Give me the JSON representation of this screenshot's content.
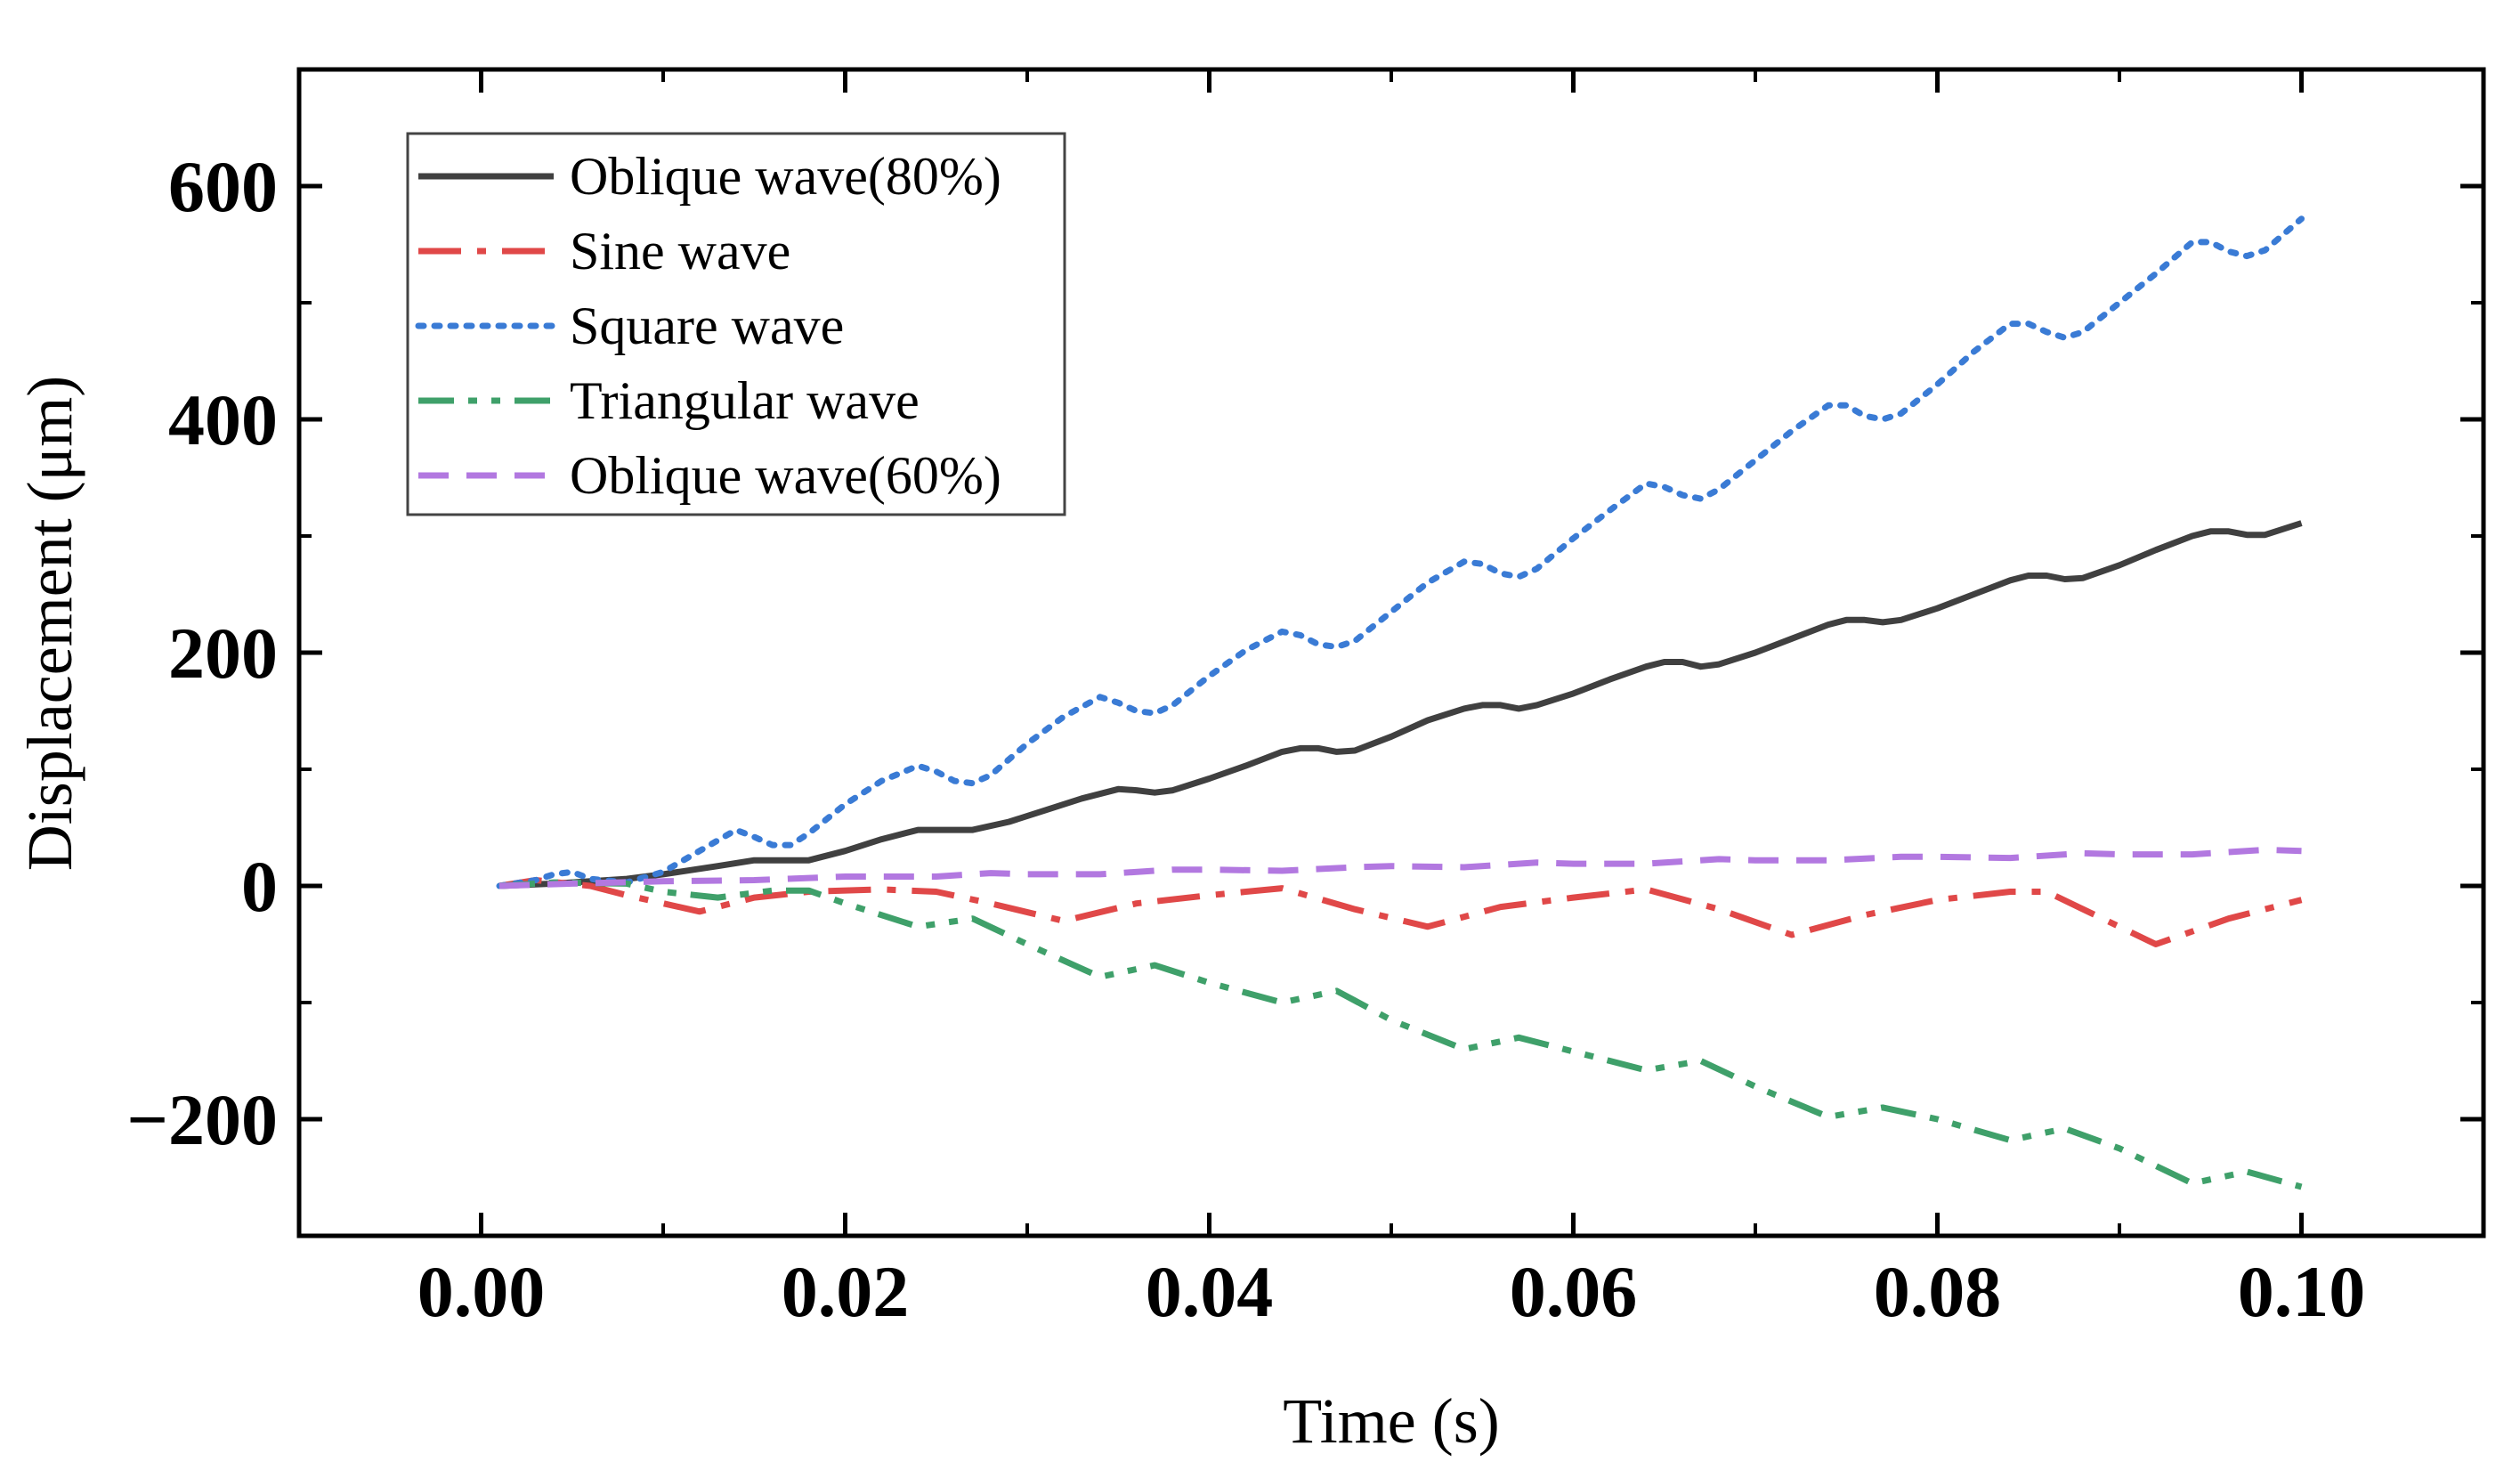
{
  "chart_data": {
    "type": "line",
    "title": "",
    "xlabel": "Time (s)",
    "ylabel": "Displacement (μm)",
    "xlim": [
      -0.01,
      0.11
    ],
    "ylim": [
      -300,
      700
    ],
    "xticks": [
      {
        "value": 0.0,
        "label": "0.00"
      },
      {
        "value": 0.02,
        "label": "0.02"
      },
      {
        "value": 0.04,
        "label": "0.04"
      },
      {
        "value": 0.06,
        "label": "0.06"
      },
      {
        "value": 0.08,
        "label": "0.08"
      },
      {
        "value": 0.1,
        "label": "0.10"
      }
    ],
    "yticks": [
      {
        "value": -200,
        "label": "−200"
      },
      {
        "value": 0,
        "label": "0"
      },
      {
        "value": 200,
        "label": "200"
      },
      {
        "value": 400,
        "label": "400"
      },
      {
        "value": 600,
        "label": "600"
      }
    ],
    "legend_position": "top-left",
    "series": [
      {
        "name": "Oblique wave(80%)",
        "color": "#404040",
        "dash": "solid",
        "x": [
          0.001,
          0.004,
          0.006,
          0.008,
          0.01,
          0.013,
          0.015,
          0.017,
          0.018,
          0.02,
          0.022,
          0.024,
          0.026,
          0.027,
          0.029,
          0.031,
          0.033,
          0.035,
          0.036,
          0.037,
          0.038,
          0.04,
          0.042,
          0.044,
          0.045,
          0.046,
          0.047,
          0.048,
          0.05,
          0.052,
          0.054,
          0.055,
          0.056,
          0.057,
          0.058,
          0.06,
          0.062,
          0.064,
          0.065,
          0.066,
          0.067,
          0.068,
          0.07,
          0.072,
          0.074,
          0.075,
          0.076,
          0.077,
          0.078,
          0.08,
          0.082,
          0.084,
          0.085,
          0.086,
          0.087,
          0.088,
          0.09,
          0.092,
          0.094,
          0.095,
          0.096,
          0.097,
          0.098,
          0.1
        ],
        "y": [
          0,
          2,
          4,
          6,
          10,
          17,
          22,
          22,
          22,
          30,
          40,
          48,
          48,
          48,
          55,
          65,
          75,
          83,
          82,
          80,
          82,
          92,
          103,
          115,
          118,
          118,
          115,
          116,
          128,
          142,
          152,
          155,
          155,
          152,
          155,
          165,
          177,
          188,
          192,
          192,
          188,
          190,
          200,
          212,
          224,
          228,
          228,
          226,
          228,
          238,
          250,
          262,
          266,
          266,
          263,
          264,
          275,
          288,
          300,
          304,
          304,
          301,
          301,
          311
        ]
      },
      {
        "name": "Sine wave",
        "color": "#E04848",
        "dash": "dashdot",
        "x": [
          0.001,
          0.003,
          0.006,
          0.008,
          0.012,
          0.015,
          0.018,
          0.022,
          0.025,
          0.028,
          0.032,
          0.036,
          0.04,
          0.044,
          0.048,
          0.052,
          0.056,
          0.06,
          0.064,
          0.068,
          0.072,
          0.076,
          0.08,
          0.084,
          0.086,
          0.088,
          0.092,
          0.096,
          0.1
        ],
        "y": [
          0,
          5,
          0,
          -8,
          -22,
          -10,
          -5,
          -3,
          -5,
          -15,
          -30,
          -15,
          -8,
          -2,
          -20,
          -35,
          -18,
          -10,
          -3,
          -20,
          -42,
          -25,
          -12,
          -5,
          -5,
          -20,
          -50,
          -28,
          -12
        ]
      },
      {
        "name": "Square wave",
        "color": "#3A7BD5",
        "dash": "dotted",
        "x": [
          0.001,
          0.003,
          0.004,
          0.005,
          0.006,
          0.008,
          0.01,
          0.012,
          0.014,
          0.015,
          0.016,
          0.017,
          0.018,
          0.02,
          0.022,
          0.024,
          0.025,
          0.026,
          0.027,
          0.028,
          0.03,
          0.032,
          0.034,
          0.035,
          0.036,
          0.037,
          0.038,
          0.04,
          0.042,
          0.044,
          0.045,
          0.046,
          0.047,
          0.048,
          0.05,
          0.052,
          0.054,
          0.055,
          0.056,
          0.057,
          0.058,
          0.06,
          0.062,
          0.064,
          0.065,
          0.066,
          0.067,
          0.068,
          0.07,
          0.072,
          0.074,
          0.075,
          0.076,
          0.077,
          0.078,
          0.08,
          0.082,
          0.084,
          0.085,
          0.086,
          0.087,
          0.088,
          0.09,
          0.092,
          0.094,
          0.095,
          0.096,
          0.097,
          0.098,
          0.1
        ],
        "y": [
          0,
          5,
          10,
          12,
          6,
          3,
          12,
          30,
          48,
          42,
          35,
          35,
          45,
          70,
          90,
          103,
          98,
          90,
          88,
          95,
          122,
          145,
          162,
          157,
          150,
          148,
          155,
          180,
          202,
          218,
          215,
          207,
          205,
          210,
          235,
          260,
          278,
          276,
          268,
          265,
          272,
          298,
          322,
          345,
          342,
          335,
          332,
          340,
          365,
          390,
          412,
          412,
          403,
          400,
          405,
          430,
          458,
          482,
          482,
          475,
          470,
          475,
          500,
          525,
          552,
          552,
          544,
          540,
          545,
          572
        ]
      },
      {
        "name": "Triangular wave",
        "color": "#3FA06A",
        "dash": "dashdotdot",
        "x": [
          0.001,
          0.004,
          0.008,
          0.01,
          0.013,
          0.016,
          0.018,
          0.02,
          0.024,
          0.027,
          0.03,
          0.034,
          0.037,
          0.04,
          0.044,
          0.047,
          0.05,
          0.054,
          0.057,
          0.06,
          0.064,
          0.067,
          0.07,
          0.074,
          0.077,
          0.08,
          0.084,
          0.087,
          0.09,
          0.094,
          0.097,
          0.1
        ],
        "y": [
          0,
          3,
          2,
          -5,
          -10,
          -4,
          -4,
          -15,
          -35,
          -28,
          -50,
          -78,
          -68,
          -83,
          -100,
          -90,
          -115,
          -140,
          -130,
          -142,
          -158,
          -150,
          -172,
          -198,
          -190,
          -200,
          -218,
          -208,
          -225,
          -255,
          -245,
          -258
        ]
      },
      {
        "name": "Oblique wave(60%)",
        "color": "#B278E0",
        "dash": "dashed",
        "x": [
          0.001,
          0.005,
          0.01,
          0.015,
          0.02,
          0.025,
          0.028,
          0.03,
          0.034,
          0.038,
          0.04,
          0.044,
          0.048,
          0.05,
          0.054,
          0.058,
          0.06,
          0.064,
          0.068,
          0.07,
          0.074,
          0.078,
          0.08,
          0.084,
          0.088,
          0.09,
          0.094,
          0.098,
          0.1
        ],
        "y": [
          0,
          2,
          4,
          5,
          8,
          8,
          11,
          10,
          10,
          14,
          14,
          13,
          16,
          17,
          16,
          20,
          19,
          19,
          23,
          22,
          22,
          25,
          25,
          24,
          28,
          27,
          27,
          31,
          30
        ]
      }
    ]
  }
}
